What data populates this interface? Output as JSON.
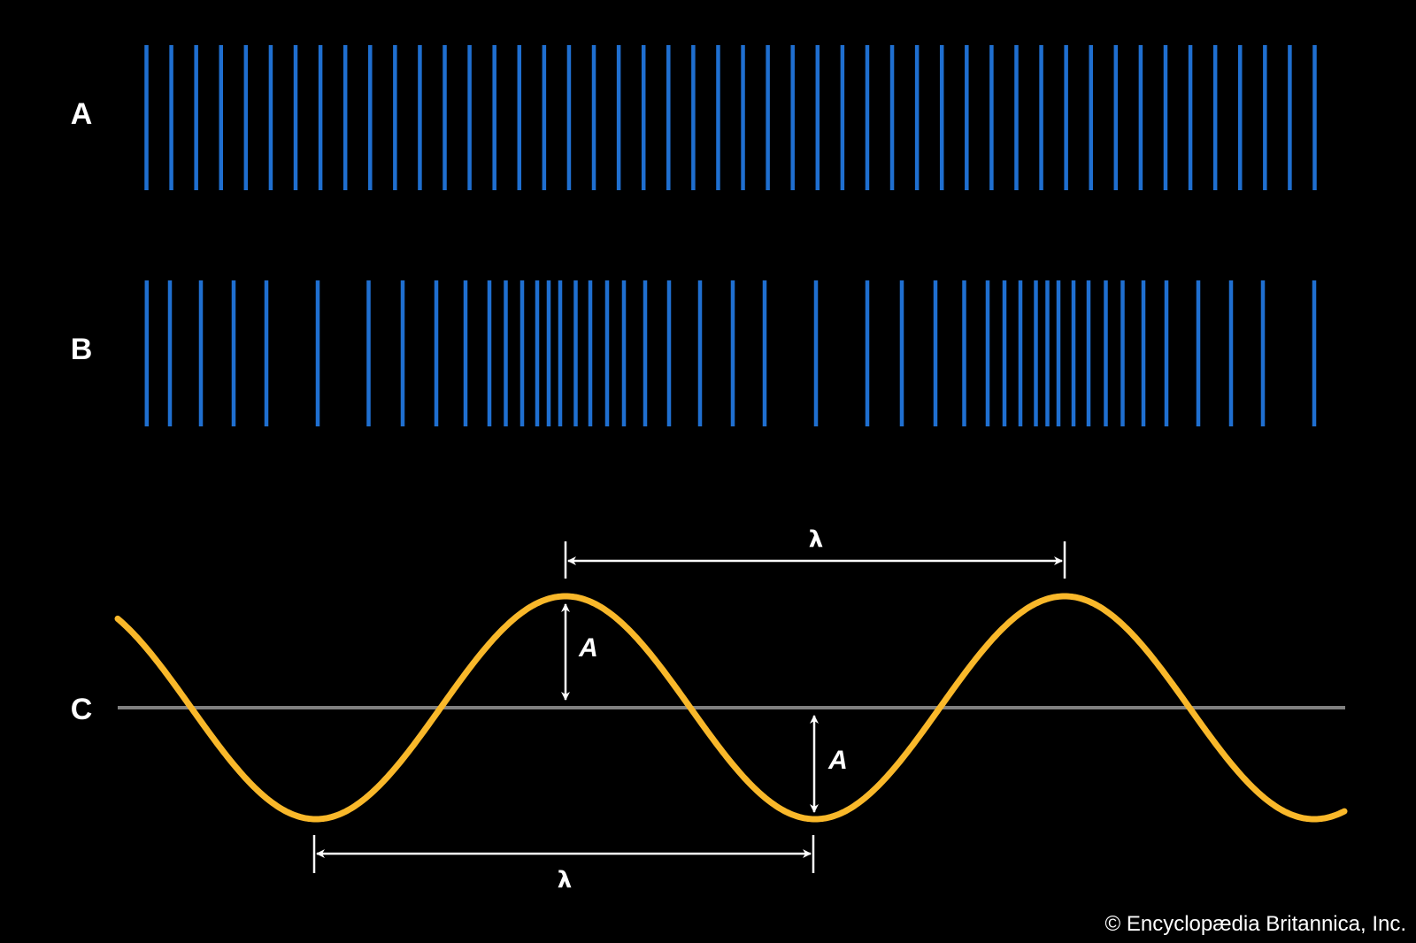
{
  "labels": {
    "row_a": "A",
    "row_b": "B",
    "row_c": "C"
  },
  "wave": {
    "wavelength_symbol": "λ",
    "amplitude_symbol": "A"
  },
  "copyright": "© Encyclopædia Britannica, Inc.",
  "colors": {
    "background": "#000000",
    "lines": "#1f6fd0",
    "wave": "#f9b82a",
    "axis": "#808080",
    "annotation": "#ffffff"
  }
}
